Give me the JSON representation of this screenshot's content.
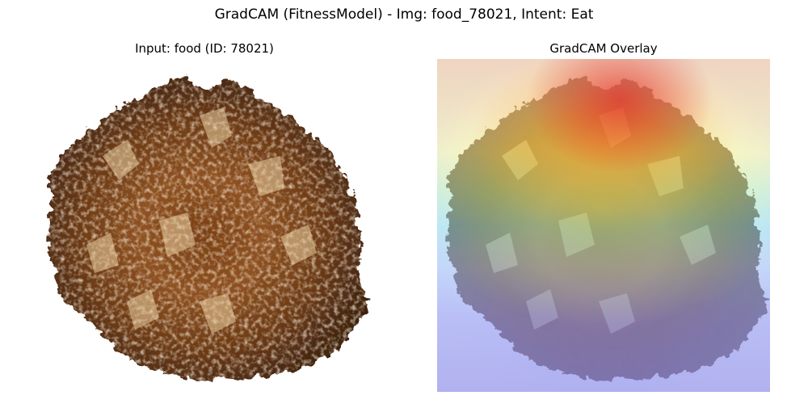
{
  "figure": {
    "suptitle": "GradCAM (FitnessModel) - Img: food_78021, Intent: Eat"
  },
  "panels": [
    {
      "title": "Input: food (ID: 78021)"
    },
    {
      "title": "GradCAM Overlay"
    }
  ]
}
